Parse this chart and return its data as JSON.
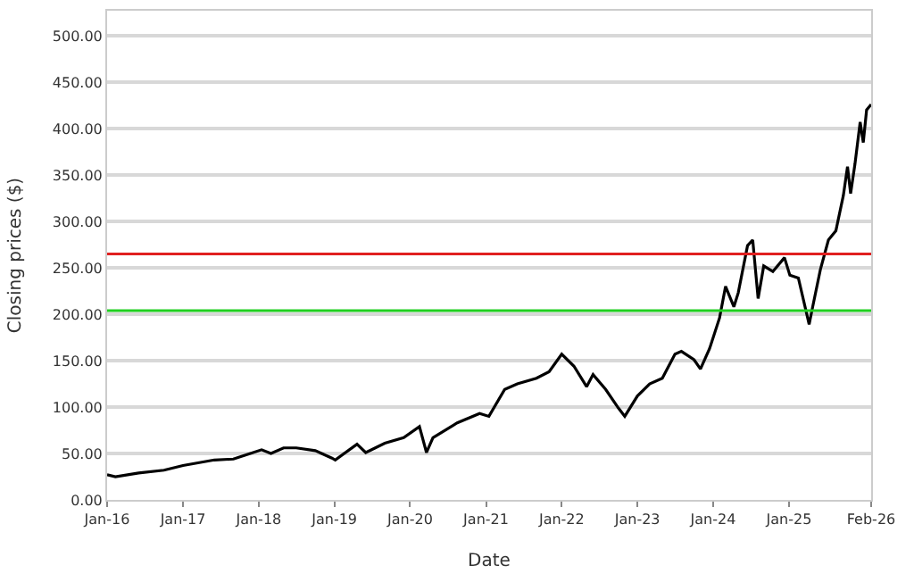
{
  "chart_data": {
    "type": "line",
    "xlabel": "Date",
    "ylabel": "Closing prices ($)",
    "x": [
      "2016-01-01",
      "2016-02-10",
      "2016-06-01",
      "2016-10-01",
      "2017-01-01",
      "2017-06-01",
      "2017-09-01",
      "2018-01-15",
      "2018-03-01",
      "2018-05-01",
      "2018-07-01",
      "2018-10-01",
      "2018-12-20",
      "2019-01-05",
      "2019-04-20",
      "2019-06-01",
      "2019-09-01",
      "2019-12-01",
      "2020-02-15",
      "2020-03-20",
      "2020-04-20",
      "2020-08-15",
      "2020-12-01",
      "2021-01-15",
      "2021-04-01",
      "2021-06-01",
      "2021-09-01",
      "2021-11-01",
      "2022-01-01",
      "2022-03-01",
      "2022-05-01",
      "2022-06-01",
      "2022-08-01",
      "2022-10-01",
      "2022-11-01",
      "2023-01-01",
      "2023-03-01",
      "2023-05-01",
      "2023-07-01",
      "2023-08-01",
      "2023-10-01",
      "2023-11-01",
      "2023-12-15",
      "2024-02-01",
      "2024-03-01",
      "2024-04-10",
      "2024-05-01",
      "2024-06-15",
      "2024-07-10",
      "2024-08-05",
      "2024-09-01",
      "2024-10-15",
      "2024-12-10",
      "2025-01-05",
      "2025-02-15",
      "2025-04-08",
      "2025-04-25",
      "2025-06-01",
      "2025-07-10",
      "2025-08-15",
      "2025-09-20",
      "2025-10-10",
      "2025-10-25",
      "2025-11-15",
      "2025-12-10",
      "2025-12-25",
      "2026-01-10",
      "2026-02-01"
    ],
    "series": [
      {
        "color": "#000000",
        "values": [
          27,
          25,
          29,
          32,
          37,
          43,
          44,
          54,
          50,
          56,
          56,
          53,
          45,
          43,
          60,
          51,
          61,
          67,
          79,
          51,
          67,
          83,
          93,
          90,
          119,
          125,
          131,
          138,
          157,
          144,
          122,
          135,
          119,
          99,
          90,
          112,
          125,
          131,
          157,
          160,
          151,
          141,
          163,
          196,
          230,
          208,
          223,
          274,
          280,
          217,
          252,
          246,
          261,
          242,
          239,
          189,
          208,
          248,
          280,
          290,
          328,
          359,
          330,
          362,
          407,
          385,
          420,
          426
        ]
      }
    ],
    "xlim": [
      "2016-01-01",
      "2026-02-01"
    ],
    "xticks": [
      {
        "value": "2016-01-01",
        "label": "Jan-16"
      },
      {
        "value": "2017-01-01",
        "label": "Jan-17"
      },
      {
        "value": "2018-01-01",
        "label": "Jan-18"
      },
      {
        "value": "2019-01-01",
        "label": "Jan-19"
      },
      {
        "value": "2020-01-01",
        "label": "Jan-20"
      },
      {
        "value": "2021-01-01",
        "label": "Jan-21"
      },
      {
        "value": "2022-01-01",
        "label": "Jan-22"
      },
      {
        "value": "2023-01-01",
        "label": "Jan-23"
      },
      {
        "value": "2024-01-01",
        "label": "Jan-24"
      },
      {
        "value": "2025-01-01",
        "label": "Jan-25"
      },
      {
        "value": "2026-02-01",
        "label": "Feb-26"
      }
    ],
    "ylim": [
      0,
      527
    ],
    "yticks": [
      {
        "value": 0,
        "label": "0.00"
      },
      {
        "value": 50,
        "label": "50.00"
      },
      {
        "value": 100,
        "label": "100.00"
      },
      {
        "value": 150,
        "label": "150.00"
      },
      {
        "value": 200,
        "label": "200.00"
      },
      {
        "value": 250,
        "label": "250.00"
      },
      {
        "value": 300,
        "label": "300.00"
      },
      {
        "value": 350,
        "label": "350.00"
      },
      {
        "value": 400,
        "label": "400.00"
      },
      {
        "value": 450,
        "label": "450.00"
      },
      {
        "value": 500,
        "label": "500.00"
      }
    ],
    "grid": "y",
    "ref_lines": [
      {
        "axis": "y",
        "value": 265,
        "color": "#e02020"
      },
      {
        "axis": "y",
        "value": 204,
        "color": "#20d020"
      }
    ]
  }
}
